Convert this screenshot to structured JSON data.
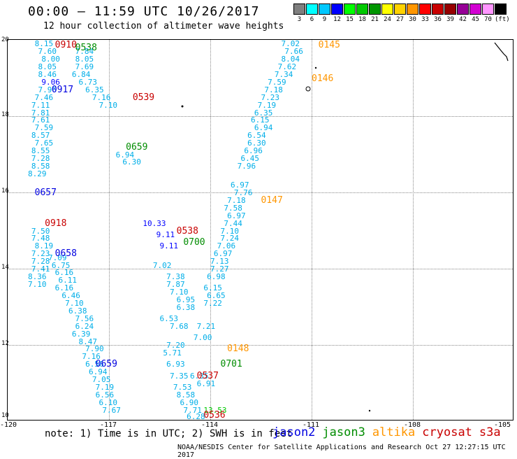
{
  "title": "00:00 – 11:59 UTC 10/26/2017",
  "subtitle": "12 hour collection of altimeter wave heights",
  "scale": {
    "labels": [
      "3",
      "6",
      "9",
      "12",
      "15",
      "18",
      "21",
      "24",
      "27",
      "30",
      "33",
      "36",
      "39",
      "42",
      "45",
      "70",
      "(ft)"
    ],
    "colors": [
      "#7f7f7f",
      "#00ffff",
      "#00c8ff",
      "#0000ff",
      "#00ff00",
      "#00c800",
      "#009600",
      "#ffff00",
      "#ffd200",
      "#ff9600",
      "#ff0000",
      "#c80000",
      "#960000",
      "#960096",
      "#d200d2",
      "#ff96ff",
      "#000000"
    ]
  },
  "axes": {
    "lat_labels": [
      "20",
      "18",
      "16",
      "14",
      "12",
      "10"
    ],
    "lon_labels": [
      "-120",
      "-117",
      "-114",
      "-111",
      "-108",
      "-105"
    ]
  },
  "note": "note: 1) Time is in UTC; 2) SWH is in feet",
  "legend": [
    {
      "name": "jason2",
      "color": "#0000e0"
    },
    {
      "name": "jason3",
      "color": "#008c00"
    },
    {
      "name": "altika",
      "color": "#ff9600"
    },
    {
      "name": "cryosat",
      "color": "#c80000"
    },
    {
      "name": "s3a",
      "color": "#c80000"
    }
  ],
  "footer": "NOAA/NESDIS Center for Satellite Applications and Research   Oct 27 12:27:15 UTC 2017",
  "colors": {
    "swh": "#00aee8",
    "swh_high": "#00c800"
  },
  "chart_data": {
    "type": "scatter",
    "xlim": [
      -120,
      -105
    ],
    "ylim": [
      10,
      20
    ],
    "tracks": [
      {
        "sat": "jason2",
        "time": "0917",
        "lon": -118.7,
        "lat": 18.7
      },
      {
        "sat": "cryosat",
        "time": "0910",
        "lon": -118.6,
        "lat": 19.9
      },
      {
        "sat": "jason3",
        "time": "0538",
        "lon": -118.0,
        "lat": 19.8
      },
      {
        "sat": "cryosat",
        "time": "0539",
        "lon": -116.3,
        "lat": 18.5
      },
      {
        "sat": "jason3",
        "time": "0659",
        "lon": -116.5,
        "lat": 17.2
      },
      {
        "sat": "jason2",
        "time": "0657",
        "lon": -119.2,
        "lat": 16.0
      },
      {
        "sat": "cryosat",
        "time": "0918",
        "lon": -118.9,
        "lat": 15.2
      },
      {
        "sat": "jason2",
        "time": "0658",
        "lon": -118.6,
        "lat": 14.4
      },
      {
        "sat": "cryosat",
        "time": "0538",
        "lon": -115.0,
        "lat": 15.0
      },
      {
        "sat": "jason3",
        "time": "0700",
        "lon": -114.8,
        "lat": 14.7
      },
      {
        "sat": "jason2",
        "time": "0659",
        "lon": -117.4,
        "lat": 11.5
      },
      {
        "sat": "altika",
        "time": "0145",
        "lon": -110.8,
        "lat": 19.9
      },
      {
        "sat": "altika",
        "time": "0146",
        "lon": -111.0,
        "lat": 19.0
      },
      {
        "sat": "altika",
        "time": "0147",
        "lon": -112.5,
        "lat": 15.8
      },
      {
        "sat": "altika",
        "time": "0148",
        "lon": -113.5,
        "lat": 11.9
      },
      {
        "sat": "jason3",
        "time": "0701",
        "lon": -113.7,
        "lat": 11.5
      },
      {
        "sat": "cryosat",
        "time": "0537",
        "lon": -114.4,
        "lat": 11.2
      },
      {
        "sat": "cryosat",
        "time": "0536",
        "lon": -114.2,
        "lat": 10.1
      }
    ],
    "swh_points": [
      {
        "v": "8.15",
        "lon": -119.2,
        "lat": 19.9
      },
      {
        "v": "7.60",
        "lon": -119.1,
        "lat": 19.7
      },
      {
        "v": "8.00",
        "lon": -119.0,
        "lat": 19.5
      },
      {
        "v": "8.05",
        "lon": -119.1,
        "lat": 19.3
      },
      {
        "v": "8.46",
        "lon": -119.1,
        "lat": 19.1
      },
      {
        "v": "9.06",
        "lon": -119.0,
        "lat": 18.9
      },
      {
        "v": "7.96",
        "lon": -119.1,
        "lat": 18.7
      },
      {
        "v": "7.46",
        "lon": -119.2,
        "lat": 18.5
      },
      {
        "v": "7.11",
        "lon": -119.3,
        "lat": 18.3
      },
      {
        "v": "7.81",
        "lon": -119.3,
        "lat": 18.1
      },
      {
        "v": "7.61",
        "lon": -119.3,
        "lat": 17.9
      },
      {
        "v": "7.59",
        "lon": -119.2,
        "lat": 17.7
      },
      {
        "v": "8.57",
        "lon": -119.3,
        "lat": 17.5
      },
      {
        "v": "7.65",
        "lon": -119.2,
        "lat": 17.3
      },
      {
        "v": "8.55",
        "lon": -119.3,
        "lat": 17.1
      },
      {
        "v": "7.28",
        "lon": -119.3,
        "lat": 16.9
      },
      {
        "v": "8.58",
        "lon": -119.3,
        "lat": 16.7
      },
      {
        "v": "8.29",
        "lon": -119.4,
        "lat": 16.5
      },
      {
        "v": "7.50",
        "lon": -119.3,
        "lat": 15.0
      },
      {
        "v": "7.48",
        "lon": -119.3,
        "lat": 14.8
      },
      {
        "v": "8.19",
        "lon": -119.2,
        "lat": 14.6
      },
      {
        "v": "7.23",
        "lon": -119.3,
        "lat": 14.4
      },
      {
        "v": "7.28",
        "lon": -119.3,
        "lat": 14.2
      },
      {
        "v": "7.41",
        "lon": -119.3,
        "lat": 14.0
      },
      {
        "v": "8.36",
        "lon": -119.4,
        "lat": 13.8
      },
      {
        "v": "7.10",
        "lon": -119.4,
        "lat": 13.6
      },
      {
        "v": "7.84",
        "lon": -118.0,
        "lat": 19.7
      },
      {
        "v": "8.05",
        "lon": -118.0,
        "lat": 19.5
      },
      {
        "v": "7.69",
        "lon": -118.0,
        "lat": 19.3
      },
      {
        "v": "6.84",
        "lon": -118.1,
        "lat": 19.1
      },
      {
        "v": "6.73",
        "lon": -117.9,
        "lat": 18.9
      },
      {
        "v": "6.35",
        "lon": -117.7,
        "lat": 18.7
      },
      {
        "v": "7.16",
        "lon": -117.5,
        "lat": 18.5
      },
      {
        "v": "7.10",
        "lon": -117.3,
        "lat": 18.3
      },
      {
        "v": "6.94",
        "lon": -116.8,
        "lat": 17.0
      },
      {
        "v": "6.30",
        "lon": -116.6,
        "lat": 16.8
      },
      {
        "v": "10.33",
        "lon": -116.0,
        "lat": 15.2
      },
      {
        "v": "9.11",
        "lon": -115.6,
        "lat": 14.9
      },
      {
        "v": "9.11",
        "lon": -115.5,
        "lat": 14.6
      },
      {
        "v": "7.02",
        "lon": -115.7,
        "lat": 14.1
      },
      {
        "v": "7.38",
        "lon": -115.3,
        "lat": 13.8
      },
      {
        "v": "7.87",
        "lon": -115.3,
        "lat": 13.6
      },
      {
        "v": "7.10",
        "lon": -115.2,
        "lat": 13.4
      },
      {
        "v": "6.95",
        "lon": -115.0,
        "lat": 13.2
      },
      {
        "v": "6.38",
        "lon": -115.0,
        "lat": 13.0
      },
      {
        "v": "6.53",
        "lon": -115.5,
        "lat": 12.7
      },
      {
        "v": "7.68",
        "lon": -115.2,
        "lat": 12.5
      },
      {
        "v": "7.20",
        "lon": -115.3,
        "lat": 12.0
      },
      {
        "v": "5.71",
        "lon": -115.4,
        "lat": 11.8
      },
      {
        "v": "6.93",
        "lon": -115.3,
        "lat": 11.5
      },
      {
        "v": "7.35",
        "lon": -115.2,
        "lat": 11.2
      },
      {
        "v": "7.53",
        "lon": -115.1,
        "lat": 10.9
      },
      {
        "v": "8.58",
        "lon": -115.0,
        "lat": 10.7
      },
      {
        "v": "6.90",
        "lon": -114.9,
        "lat": 10.5
      },
      {
        "v": "7.71",
        "lon": -114.8,
        "lat": 10.3
      },
      {
        "v": "6.28",
        "lon": -114.7,
        "lat": 10.1
      },
      {
        "v": "13.53",
        "lon": -114.2,
        "lat": 10.3
      },
      {
        "v": "7.09",
        "lon": -118.8,
        "lat": 14.3
      },
      {
        "v": "6.75",
        "lon": -118.7,
        "lat": 14.1
      },
      {
        "v": "6.16",
        "lon": -118.6,
        "lat": 13.9
      },
      {
        "v": "6.11",
        "lon": -118.5,
        "lat": 13.7
      },
      {
        "v": "6.16",
        "lon": -118.6,
        "lat": 13.5
      },
      {
        "v": "6.46",
        "lon": -118.4,
        "lat": 13.3
      },
      {
        "v": "7.10",
        "lon": -118.3,
        "lat": 13.1
      },
      {
        "v": "6.38",
        "lon": -118.2,
        "lat": 12.9
      },
      {
        "v": "7.56",
        "lon": -118.0,
        "lat": 12.7
      },
      {
        "v": "6.24",
        "lon": -118.0,
        "lat": 12.5
      },
      {
        "v": "6.39",
        "lon": -118.1,
        "lat": 12.3
      },
      {
        "v": "8.47",
        "lon": -117.9,
        "lat": 12.1
      },
      {
        "v": "7.90",
        "lon": -117.7,
        "lat": 11.9
      },
      {
        "v": "7.16",
        "lon": -117.8,
        "lat": 11.7
      },
      {
        "v": "6.56",
        "lon": -117.7,
        "lat": 11.5
      },
      {
        "v": "6.94",
        "lon": -117.6,
        "lat": 11.3
      },
      {
        "v": "7.05",
        "lon": -117.5,
        "lat": 11.1
      },
      {
        "v": "7.19",
        "lon": -117.4,
        "lat": 10.9
      },
      {
        "v": "6.56",
        "lon": -117.4,
        "lat": 10.7
      },
      {
        "v": "6.10",
        "lon": -117.3,
        "lat": 10.5
      },
      {
        "v": "7.67",
        "lon": -117.2,
        "lat": 10.3
      },
      {
        "v": "7.02",
        "lon": -111.9,
        "lat": 19.9
      },
      {
        "v": "7.66",
        "lon": -111.8,
        "lat": 19.7
      },
      {
        "v": "8.04",
        "lon": -111.9,
        "lat": 19.5
      },
      {
        "v": "7.62",
        "lon": -112.0,
        "lat": 19.3
      },
      {
        "v": "7.34",
        "lon": -112.1,
        "lat": 19.1
      },
      {
        "v": "7.59",
        "lon": -112.3,
        "lat": 18.9
      },
      {
        "v": "7.18",
        "lon": -112.4,
        "lat": 18.7
      },
      {
        "v": "7.23",
        "lon": -112.5,
        "lat": 18.5
      },
      {
        "v": "7.19",
        "lon": -112.6,
        "lat": 18.3
      },
      {
        "v": "6.35",
        "lon": -112.7,
        "lat": 18.1
      },
      {
        "v": "6.15",
        "lon": -112.8,
        "lat": 17.9
      },
      {
        "v": "6.94",
        "lon": -112.7,
        "lat": 17.7
      },
      {
        "v": "6.54",
        "lon": -112.9,
        "lat": 17.5
      },
      {
        "v": "6.30",
        "lon": -112.9,
        "lat": 17.3
      },
      {
        "v": "6.96",
        "lon": -113.0,
        "lat": 17.1
      },
      {
        "v": "6.45",
        "lon": -113.1,
        "lat": 16.9
      },
      {
        "v": "7.96",
        "lon": -113.2,
        "lat": 16.7
      },
      {
        "v": "6.97",
        "lon": -113.4,
        "lat": 16.2
      },
      {
        "v": "7.76",
        "lon": -113.3,
        "lat": 16.0
      },
      {
        "v": "7.18",
        "lon": -113.5,
        "lat": 15.8
      },
      {
        "v": "7.58",
        "lon": -113.6,
        "lat": 15.6
      },
      {
        "v": "6.97",
        "lon": -113.5,
        "lat": 15.4
      },
      {
        "v": "7.44",
        "lon": -113.6,
        "lat": 15.2
      },
      {
        "v": "7.10",
        "lon": -113.7,
        "lat": 15.0
      },
      {
        "v": "7.24",
        "lon": -113.7,
        "lat": 14.8
      },
      {
        "v": "7.06",
        "lon": -113.8,
        "lat": 14.6
      },
      {
        "v": "6.97",
        "lon": -113.9,
        "lat": 14.4
      },
      {
        "v": "7.13",
        "lon": -114.0,
        "lat": 14.2
      },
      {
        "v": "7.27",
        "lon": -114.0,
        "lat": 14.0
      },
      {
        "v": "6.98",
        "lon": -114.1,
        "lat": 13.8
      },
      {
        "v": "6.15",
        "lon": -114.2,
        "lat": 13.5
      },
      {
        "v": "6.65",
        "lon": -114.1,
        "lat": 13.3
      },
      {
        "v": "7.22",
        "lon": -114.2,
        "lat": 13.1
      },
      {
        "v": "7.21",
        "lon": -114.4,
        "lat": 12.5
      },
      {
        "v": "7.00",
        "lon": -114.5,
        "lat": 12.2
      },
      {
        "v": "6.91",
        "lon": -114.4,
        "lat": 11.0
      },
      {
        "v": "6.35",
        "lon": -114.6,
        "lat": 11.2
      }
    ]
  }
}
